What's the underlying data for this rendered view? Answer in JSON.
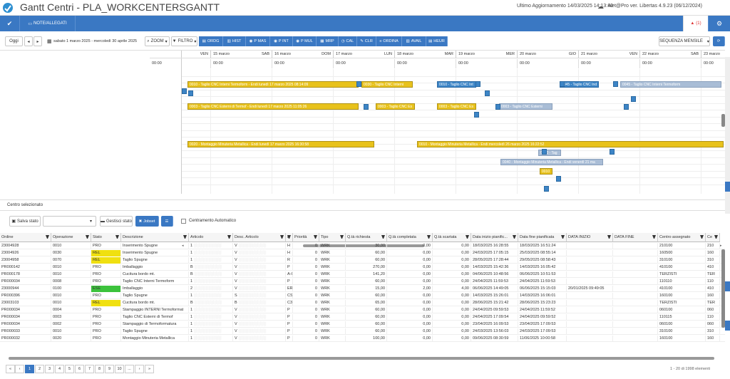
{
  "header": {
    "title": "Gantt Centri - PLA_WORKCENTERSGANTT",
    "updated": "Ultimo Aggiornamento 14/03/2025 14:13:40",
    "version": "Net@Pro ver. Libertas 4.9.23 (06/12/2024)",
    "alerts": "(1)"
  },
  "bluebar": {
    "note": "NOTE/ALLEGATI"
  },
  "toolbar": {
    "today": "Oggi",
    "range": "sabato 1 marzo 2025 - mercoledì 30 aprile 2025",
    "zoom": "ZOOM",
    "filter": "FILTRO",
    "buttons": [
      "ORDG",
      "HIST",
      "P MAS",
      "P INT",
      "P MUL",
      "MRP",
      "CAL",
      "CLR",
      "ORDINA",
      "AVAIL",
      "HEUR"
    ],
    "sequence": "SEQUENZA MENSILE"
  },
  "timeline": {
    "days": [
      {
        "date": "",
        "dow": "VEN"
      },
      {
        "date": "15 marzo",
        "dow": "SAB"
      },
      {
        "date": "16 marzo",
        "dow": "DOM"
      },
      {
        "date": "17 marzo",
        "dow": "LUN"
      },
      {
        "date": "18 marzo",
        "dow": "MAR"
      },
      {
        "date": "19 marzo",
        "dow": "MER"
      },
      {
        "date": "20 marzo",
        "dow": "GIO"
      },
      {
        "date": "21 marzo",
        "dow": "VEN"
      },
      {
        "date": "22 marzo",
        "dow": "SAB"
      },
      {
        "date": "23 marzo",
        "dow": ""
      }
    ],
    "time": "00:00"
  },
  "gantt_bars": [
    {
      "row": 0,
      "label": "0010 - Taglio CNC Interni Termoform - Endi lunedì 17 marzo 2025 08:14:09",
      "color": "y"
    },
    {
      "row": 0,
      "label": "0030 - Taglio CNC Interni",
      "color": "y"
    },
    {
      "row": 0,
      "label": "0010 - Taglio CNC Int",
      "color": "b"
    },
    {
      "row": 0,
      "label": "0045 - Taglio CNC Ind",
      "color": "b"
    },
    {
      "row": 0,
      "label": "0045 - Taglio CNC Interni Termoform",
      "color": "g"
    },
    {
      "row": 3,
      "label": "0003 - Taglio CNC Esterni di Termof - Endi lunedì 17 marzo 2025 11:05:26",
      "color": "y"
    },
    {
      "row": 3,
      "label": "0003 - Taglio CNC Es",
      "color": "y"
    },
    {
      "row": 3,
      "label": "0003 - Taglio CNC Es",
      "color": "y"
    },
    {
      "row": 3,
      "label": "0003 - Taglio CNC Esterni",
      "color": "g"
    },
    {
      "row": 8,
      "label": "0020 - Montaggio Minuteria Metallica - Endi lunedì 17 marzo 2025 16:30:58",
      "color": "y"
    },
    {
      "row": 8,
      "label": "0010 - Montaggio Minuteria Metallica - Endi mercoledì 26 marzo 2025 16:22:52",
      "color": "y"
    },
    {
      "row": 9,
      "label": "0030 - Tag",
      "color": "g"
    },
    {
      "row": 10,
      "label": "0040 - Montaggio Minuteria Metallica - Endi venerdì 21 ma",
      "color": "g"
    },
    {
      "row": 11,
      "label": "0010",
      "color": "y"
    }
  ],
  "selection": {
    "title": "Centro selezionato",
    "save": "Salva stato",
    "manage": "Gestisci stato",
    "jobset": "Jobset",
    "auto": "Centramento Automatico"
  },
  "table": {
    "columns": [
      "Ordine",
      "Operazione",
      "Stato",
      "Descrizione",
      "Articolo",
      "Desc. Articolo",
      "E",
      "Priorità",
      "Tipo",
      "Q.tà richiesta",
      "Q.tà completata",
      "Q.tà scartata",
      "Data inizio pianific...",
      "Data fine pianificata",
      "DATA INIZIO",
      "DATA FINE",
      "Centro assegnato",
      "Ce"
    ],
    "rows": [
      [
        "23004928",
        "0010",
        "PRO",
        "Inserimento Spugne",
        "1",
        "V",
        "H",
        "0",
        "WRK",
        "30,00",
        "0,00",
        "0,00",
        "18/03/2025 16:28:55",
        "18/03/2025 16:51:24",
        "",
        "",
        "210100",
        "210"
      ],
      [
        "23004926",
        "0030",
        "REL",
        "Inserimento Spugne",
        "1",
        "V",
        "H",
        "0",
        "WRK",
        "60,00",
        "0,00",
        "0,00",
        "24/03/2025 17:05:15",
        "25/03/2025 08:55:14",
        "",
        "",
        "160500",
        "160"
      ],
      [
        "23004958",
        "0070",
        "REL",
        "Taglio Spugne",
        "1",
        "V",
        "R",
        "0",
        "WRK",
        "60,00",
        "0,00",
        "0,00",
        "28/05/2025 17:28:44",
        "29/05/2025 08:58:43",
        "",
        "",
        "310100",
        "310"
      ],
      [
        "PR000142",
        "0010",
        "PRO",
        "Imballaggio",
        "B",
        "V",
        "P",
        "0",
        "WRK",
        "270,00",
        "0,00",
        "0,00",
        "14/03/2025 15:42:36",
        "14/03/2025 16:05:42",
        "",
        "",
        "410100",
        "410"
      ],
      [
        "PR000178",
        "0010",
        "PRO",
        "Cucitura bordo mt.",
        "B",
        "V",
        "A-C1",
        "0",
        "WRK",
        "141,20",
        "0,00",
        "0,00",
        "04/06/2025 10:48:56",
        "06/06/2025 10:51:53",
        "",
        "",
        "TERZISTI",
        "TER"
      ],
      [
        "PR000034",
        "0008",
        "PRO",
        "Taglio CNC Interni Termoform",
        "1",
        "V",
        "P",
        "0",
        "WRK",
        "60,00",
        "0,00",
        "0,00",
        "24/04/2025 11:59:53",
        "24/04/2025 11:59:53",
        "",
        "",
        "110110",
        "110"
      ],
      [
        "23000944",
        "0100",
        "ESE",
        "Imballaggio",
        "2",
        "V",
        "ER",
        "0",
        "WRK",
        "15,00",
        "2,00",
        "4,00",
        "06/06/2025 14:49:05",
        "06/06/2025 15:15:03",
        "20/01/2025 09:49:05",
        "",
        "410100",
        "410"
      ],
      [
        "PR000396",
        "0010",
        "PRO",
        "Taglio Spugne",
        "1",
        "S",
        "CSF",
        "0",
        "WRK",
        "60,00",
        "0,00",
        "0,00",
        "14/03/2025 15:26:01",
        "14/03/2025 16:06:01",
        "",
        "",
        "160100",
        "160"
      ],
      [
        "23003103",
        "0010",
        "REL",
        "Cucitura bordo mt.",
        "B",
        "B",
        "C3",
        "0",
        "WRK",
        "65,00",
        "0,00",
        "0,00",
        "28/06/2025 15:21:42",
        "28/06/2025 15:23:23",
        "",
        "",
        "TERZISTI",
        "TER"
      ],
      [
        "PR000034",
        "0004",
        "PRO",
        "Stampaggio INTERNI Termoformat",
        "1",
        "V",
        "P",
        "0",
        "WRK",
        "60,00",
        "0,00",
        "0,00",
        "24/04/2025 09:59:53",
        "24/04/2025 11:59:52",
        "",
        "",
        "060100",
        "060"
      ],
      [
        "PR000034",
        "0003",
        "PRO",
        "Taglio CNC Esterni di Termof",
        "1",
        "V",
        "P",
        "0",
        "WRK",
        "60,00",
        "0,00",
        "0,00",
        "24/04/2025 17:09:54",
        "24/04/2025 09:59:52",
        "",
        "",
        "110115",
        "110"
      ],
      [
        "PR000034",
        "0002",
        "PRO",
        "Stampaggio di Termoformatura",
        "1",
        "V",
        "P",
        "0",
        "WRK",
        "60,00",
        "0,00",
        "0,00",
        "23/04/2025 16:09:53",
        "23/04/2025 17:09:53",
        "",
        "",
        "060100",
        "060"
      ],
      [
        "PR000033",
        "0010",
        "PRO",
        "Taglio Spugne",
        "1",
        "V",
        "P",
        "0",
        "WRK",
        "60,00",
        "0,00",
        "0,00",
        "24/03/2025 13:56:03",
        "24/03/2025 17:09:53",
        "",
        "",
        "310100",
        "310"
      ],
      [
        "PR000032",
        "0020",
        "PRO",
        "Montaggio Minuteria Metallica",
        "1",
        "V",
        "P",
        "0",
        "WRK",
        "100,00",
        "0,00",
        "0,00",
        "09/06/2025 08:30:59",
        "11/06/2025 10:00:58",
        "",
        "",
        "160100",
        "160"
      ]
    ]
  },
  "pager": {
    "pages": [
      "1",
      "2",
      "3",
      "4",
      "5",
      "6",
      "7",
      "8",
      "9",
      "10",
      "..."
    ],
    "summary": "1 - 20 di 1998 elementi"
  },
  "colors": {
    "accent": "#3a78c3",
    "rel": "#f0e010",
    "ese": "#3cc23c"
  }
}
